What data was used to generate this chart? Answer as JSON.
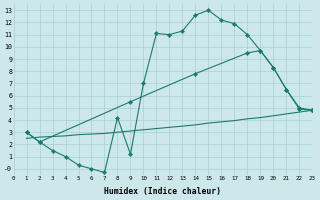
{
  "line1_x": [
    1,
    2,
    3,
    4,
    5,
    6,
    7,
    8,
    9,
    10,
    11,
    12,
    13,
    14,
    15,
    16,
    17,
    18,
    19,
    20,
    21,
    22,
    23
  ],
  "line1_y": [
    3.0,
    2.2,
    1.5,
    1.0,
    0.3,
    0.0,
    -0.3,
    4.2,
    1.2,
    7.0,
    11.1,
    11.0,
    11.3,
    12.6,
    13.0,
    12.2,
    11.9,
    11.0,
    9.7,
    8.3,
    6.5,
    4.9,
    4.8
  ],
  "line2_x": [
    1,
    2,
    9,
    14,
    18,
    19,
    20,
    21,
    22,
    23
  ],
  "line2_y": [
    3.0,
    2.2,
    5.5,
    7.8,
    9.5,
    9.7,
    8.3,
    6.5,
    5.0,
    4.8
  ],
  "line3_x": [
    1,
    2,
    3,
    4,
    5,
    6,
    7,
    8,
    9,
    10,
    11,
    12,
    13,
    14,
    15,
    16,
    17,
    18,
    19,
    20,
    21,
    22,
    23
  ],
  "line3_y": [
    2.5,
    2.6,
    2.65,
    2.7,
    2.8,
    2.85,
    2.9,
    3.0,
    3.1,
    3.2,
    3.3,
    3.4,
    3.5,
    3.6,
    3.75,
    3.85,
    3.95,
    4.1,
    4.2,
    4.35,
    4.5,
    4.65,
    4.8
  ],
  "bg_color": "#cde8eb",
  "grid_color": "#aacfd3",
  "line_color": "#1a7a6e",
  "xlabel": "Humidex (Indice chaleur)",
  "xlim": [
    0,
    23
  ],
  "ylim": [
    -0.5,
    13.5
  ],
  "xticks": [
    0,
    1,
    2,
    3,
    4,
    5,
    6,
    7,
    8,
    9,
    10,
    11,
    12,
    13,
    14,
    15,
    16,
    17,
    18,
    19,
    20,
    21,
    22,
    23
  ],
  "yticks": [
    0,
    1,
    2,
    3,
    4,
    5,
    6,
    7,
    8,
    9,
    10,
    11,
    12,
    13
  ]
}
